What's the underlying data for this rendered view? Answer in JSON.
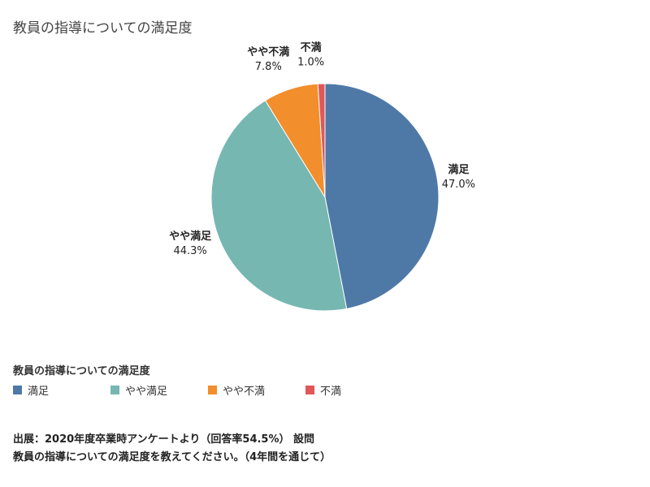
{
  "title": "教員の指導についての満足度",
  "chart_data": {
    "type": "pie",
    "title": "教員の指導についての満足度",
    "slices": [
      {
        "name": "満足",
        "value": 47.0,
        "label": "47.0%",
        "color": "#4e79a7"
      },
      {
        "name": "やや満足",
        "value": 44.3,
        "label": "44.3%",
        "color": "#76b7b2"
      },
      {
        "name": "やや不満",
        "value": 7.8,
        "label": "7.8%",
        "color": "#f28e2b"
      },
      {
        "name": "不満",
        "value": 1.0,
        "label": "1.0%",
        "color": "#e15759"
      }
    ],
    "start_angle": "top",
    "direction": "clockwise"
  },
  "legend": {
    "title": "教員の指導についての満足度",
    "items": [
      {
        "label": "満足",
        "color": "#4e79a7"
      },
      {
        "label": "やや満足",
        "color": "#76b7b2"
      },
      {
        "label": "やや不満",
        "color": "#f28e2b"
      },
      {
        "label": "不満",
        "color": "#e15759"
      }
    ]
  },
  "footnote": {
    "line1": "出展：2020年度卒業時アンケートより（回答率54.5%） 設問",
    "line2": "教員の指導についての満足度を教えてください。（4年間を通じて）"
  }
}
